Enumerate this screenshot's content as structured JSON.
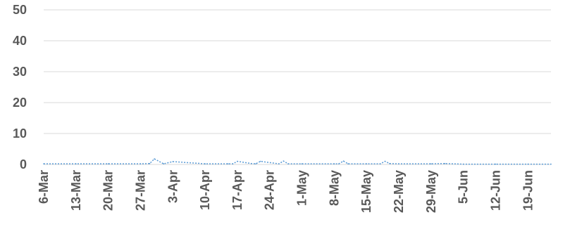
{
  "chart_data": {
    "type": "line",
    "title": "",
    "xlabel": "",
    "ylabel": "",
    "grid": true,
    "legend": "none",
    "line_color": "#5b9bd5",
    "ylim": [
      0,
      50
    ],
    "yticks": [
      "0",
      "10",
      "20",
      "30",
      "40",
      "50"
    ],
    "x_start": "6-Mar",
    "x_end": "24-Jun",
    "xticks": [
      "6-Mar",
      "13-Mar",
      "20-Mar",
      "27-Mar",
      "3-Apr",
      "10-Apr",
      "17-Apr",
      "24-Apr",
      "1-May",
      "8-May",
      "15-May",
      "22-May",
      "29-May",
      "5-Jun",
      "12-Jun",
      "19-Jun"
    ],
    "series": [
      {
        "x": [
          "6-Mar",
          "13-Mar",
          "20-Mar",
          "27-Mar",
          "29-Mar",
          "30-Mar",
          "1-Apr",
          "3-Apr",
          "10-Apr",
          "15-Apr",
          "16-Apr",
          "17-Apr",
          "20-Apr",
          "21-Apr",
          "22-Apr",
          "26-Apr",
          "27-Apr",
          "28-Apr",
          "1-May",
          "8-May",
          "9-May",
          "10-May",
          "11-May",
          "15-May",
          "18-May",
          "19-May",
          "20-May",
          "22-May",
          "29-May",
          "1-Jun",
          "5-Jun",
          "12-Jun",
          "19-Jun",
          "24-Jun"
        ],
        "values": [
          0.2,
          0.2,
          0.2,
          0.2,
          0.3,
          1.8,
          0.2,
          0.9,
          0.2,
          0.2,
          0.2,
          1.0,
          0.3,
          0.2,
          1.0,
          0.2,
          1.1,
          0.2,
          0.2,
          0.2,
          0.2,
          1.1,
          0.2,
          0.2,
          0.2,
          1.0,
          0.3,
          0.2,
          0.2,
          0.3,
          0.1,
          0.1,
          0.1,
          0.1
        ]
      }
    ]
  }
}
